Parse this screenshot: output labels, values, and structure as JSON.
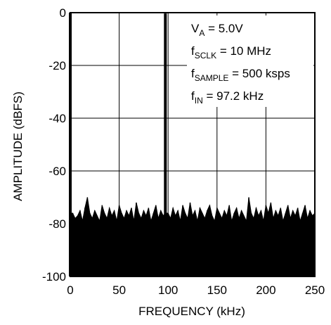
{
  "chart_data": {
    "type": "area",
    "xlabel": "FREQUENCY (kHz)",
    "ylabel": "AMPLITUDE (dBFS)",
    "xlim": [
      0,
      250
    ],
    "ylim": [
      -100,
      0
    ],
    "x_ticks": [
      0,
      50,
      100,
      150,
      200,
      250
    ],
    "y_ticks": [
      0,
      -20,
      -40,
      -60,
      -80,
      -100
    ],
    "x_tick_labels": [
      "0",
      "50",
      "100",
      "150",
      "200",
      "250"
    ],
    "y_tick_labels": [
      "0",
      "-20",
      "-40",
      "-60",
      "-80",
      "-100"
    ],
    "grid": true,
    "series": [
      {
        "x": [
          0,
          2.5,
          5,
          7.5,
          10,
          12.5,
          15,
          17.5,
          20,
          22.5,
          25,
          27.5,
          30,
          32.5,
          35,
          37.5,
          40,
          42.5,
          45,
          47.5,
          50,
          52.5,
          55,
          57.5,
          60,
          62.5,
          65,
          67.5,
          70,
          72.5,
          75,
          77.5,
          80,
          82.5,
          85,
          87.5,
          90,
          92.5,
          95,
          97.2,
          100,
          102.5,
          105,
          107.5,
          110,
          112.5,
          115,
          117.5,
          120,
          122.5,
          125,
          127.5,
          130,
          132.5,
          135,
          137.5,
          140,
          142.5,
          145,
          147.5,
          150,
          152.5,
          155,
          157.5,
          160,
          162.5,
          165,
          167.5,
          170,
          172.5,
          175,
          177.5,
          180,
          182.5,
          185,
          187.5,
          190,
          192.5,
          195,
          197.5,
          200,
          202.5,
          205,
          207.5,
          210,
          212.5,
          215,
          217.5,
          220,
          222.5,
          225,
          227.5,
          230,
          232.5,
          235,
          237.5,
          240,
          242.5,
          245,
          247.5,
          250
        ],
        "y": [
          0,
          -76,
          -78,
          -77,
          -75,
          -79,
          -74,
          -70,
          -76,
          -78,
          -75,
          -77,
          -79,
          -73,
          -76,
          -78,
          -74,
          -77,
          -75,
          -79,
          -73,
          -76,
          -78,
          -75,
          -77,
          -74,
          -79,
          -72,
          -76,
          -78,
          -75,
          -77,
          -74,
          -79,
          -76,
          -73,
          -78,
          -75,
          -77,
          -0.3,
          -76,
          -78,
          -74,
          -77,
          -75,
          -79,
          -73,
          -76,
          -78,
          -72,
          -77,
          -75,
          -79,
          -74,
          -76,
          -78,
          -75,
          -73,
          -77,
          -79,
          -74,
          -76,
          -78,
          -75,
          -77,
          -73,
          -79,
          -76,
          -74,
          -78,
          -75,
          -77,
          -79,
          -70,
          -76,
          -78,
          -74,
          -77,
          -75,
          -79,
          -73,
          -76,
          -72,
          -78,
          -75,
          -77,
          -74,
          -79,
          -76,
          -73,
          -78,
          -75,
          -77,
          -74,
          -79,
          -76,
          -73,
          -78,
          -75,
          -77,
          -76
        ]
      }
    ],
    "annotations": {
      "va_main": "V",
      "va_sub": "A",
      "va_rest": " = 5.0V",
      "fsclk_main": "f",
      "fsclk_sub": "SCLK",
      "fsclk_rest": " = 10 MHz",
      "fsample_main": "f",
      "fsample_sub": "SAMPLE",
      "fsample_rest": " = 500 ksps",
      "fin_main": "f",
      "fin_sub": "IN",
      "fin_rest": " = 97.2 kHz"
    }
  }
}
